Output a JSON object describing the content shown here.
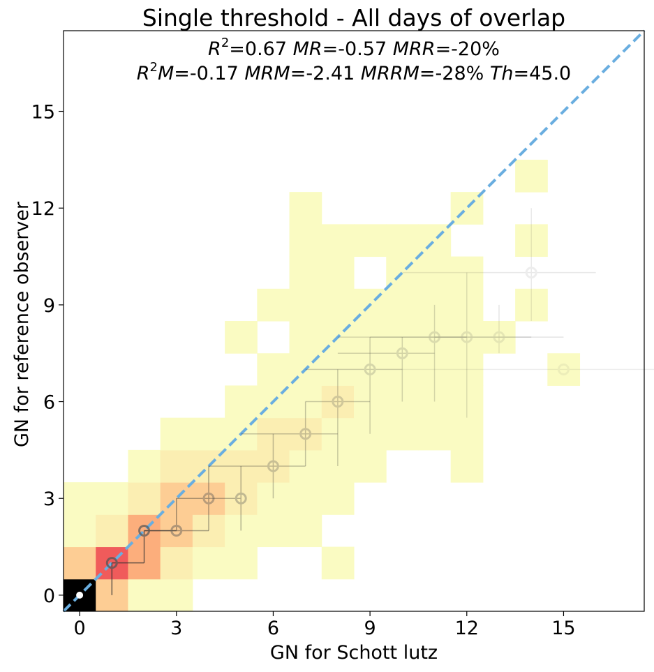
{
  "chart_data": {
    "type": "heatmap",
    "title": "Single threshold - All days of overlap",
    "stats_line1": {
      "r2_label": "R",
      "r2_sup": "2",
      "r2_value": "=0.67 ",
      "mr_label": "MR",
      "mr_value": "=-0.57 ",
      "mrr_label": "MRR",
      "mrr_value": "=-20%"
    },
    "stats_line2": {
      "r2m_label": "R",
      "r2m_sup": "2",
      "r2m_m": "M",
      "r2m_value": "=-0.17 ",
      "mrm_label": "MRM",
      "mrm_value": "=-2.41 ",
      "mrrm_label": "MRRM",
      "mrrm_value": "=-28% ",
      "th_label": "Th",
      "th_value": "=45.0"
    },
    "xlabel": "GN for Schott lutz",
    "ylabel": "GN for reference observer",
    "xlim": [
      -0.5,
      17.5
    ],
    "ylim": [
      -0.5,
      17.5
    ],
    "xticks": [
      0,
      3,
      6,
      9,
      12,
      15
    ],
    "yticks": [
      0,
      3,
      6,
      9,
      12,
      15
    ],
    "color_levels": {
      "1": "#fafbc2",
      "2": "#fbeeb2",
      "3": "#fcdca2",
      "4": "#fdcd94",
      "5": "#fcae7c",
      "6": "#f05b5b",
      "7": "#000000"
    },
    "cells": [
      {
        "x": 0,
        "y": 0,
        "v": 7
      },
      {
        "x": 1,
        "y": 0,
        "v": 4
      },
      {
        "x": 2,
        "y": 0,
        "v": 1
      },
      {
        "x": 3,
        "y": 0,
        "v": 1
      },
      {
        "x": 0,
        "y": 1,
        "v": 4
      },
      {
        "x": 1,
        "y": 1,
        "v": 6
      },
      {
        "x": 2,
        "y": 1,
        "v": 5
      },
      {
        "x": 3,
        "y": 1,
        "v": 2
      },
      {
        "x": 4,
        "y": 1,
        "v": 1
      },
      {
        "x": 5,
        "y": 1,
        "v": 1
      },
      {
        "x": 8,
        "y": 1,
        "v": 1
      },
      {
        "x": 0,
        "y": 2,
        "v": 1
      },
      {
        "x": 1,
        "y": 2,
        "v": 2
      },
      {
        "x": 2,
        "y": 2,
        "v": 5
      },
      {
        "x": 3,
        "y": 2,
        "v": 4
      },
      {
        "x": 4,
        "y": 2,
        "v": 2
      },
      {
        "x": 5,
        "y": 2,
        "v": 1
      },
      {
        "x": 6,
        "y": 2,
        "v": 1
      },
      {
        "x": 7,
        "y": 2,
        "v": 1
      },
      {
        "x": 0,
        "y": 3,
        "v": 1
      },
      {
        "x": 1,
        "y": 3,
        "v": 1
      },
      {
        "x": 2,
        "y": 3,
        "v": 2
      },
      {
        "x": 3,
        "y": 3,
        "v": 4
      },
      {
        "x": 4,
        "y": 3,
        "v": 4
      },
      {
        "x": 5,
        "y": 3,
        "v": 2
      },
      {
        "x": 6,
        "y": 3,
        "v": 1
      },
      {
        "x": 7,
        "y": 3,
        "v": 1
      },
      {
        "x": 8,
        "y": 3,
        "v": 1
      },
      {
        "x": 2,
        "y": 4,
        "v": 1
      },
      {
        "x": 3,
        "y": 4,
        "v": 2
      },
      {
        "x": 4,
        "y": 4,
        "v": 2
      },
      {
        "x": 5,
        "y": 4,
        "v": 2
      },
      {
        "x": 6,
        "y": 4,
        "v": 2
      },
      {
        "x": 7,
        "y": 4,
        "v": 1
      },
      {
        "x": 8,
        "y": 4,
        "v": 1
      },
      {
        "x": 9,
        "y": 4,
        "v": 1
      },
      {
        "x": 12,
        "y": 4,
        "v": 1
      },
      {
        "x": 3,
        "y": 5,
        "v": 1
      },
      {
        "x": 4,
        "y": 5,
        "v": 1
      },
      {
        "x": 5,
        "y": 5,
        "v": 1
      },
      {
        "x": 6,
        "y": 5,
        "v": 2
      },
      {
        "x": 7,
        "y": 5,
        "v": 2
      },
      {
        "x": 8,
        "y": 5,
        "v": 1
      },
      {
        "x": 9,
        "y": 5,
        "v": 1
      },
      {
        "x": 10,
        "y": 5,
        "v": 1
      },
      {
        "x": 11,
        "y": 5,
        "v": 1
      },
      {
        "x": 12,
        "y": 5,
        "v": 1
      },
      {
        "x": 5,
        "y": 6,
        "v": 1
      },
      {
        "x": 6,
        "y": 6,
        "v": 1
      },
      {
        "x": 7,
        "y": 6,
        "v": 1
      },
      {
        "x": 8,
        "y": 6,
        "v": 2
      },
      {
        "x": 9,
        "y": 6,
        "v": 1
      },
      {
        "x": 10,
        "y": 6,
        "v": 1
      },
      {
        "x": 11,
        "y": 6,
        "v": 1
      },
      {
        "x": 12,
        "y": 6,
        "v": 1
      },
      {
        "x": 6,
        "y": 7,
        "v": 1
      },
      {
        "x": 7,
        "y": 7,
        "v": 1
      },
      {
        "x": 8,
        "y": 7,
        "v": 1
      },
      {
        "x": 9,
        "y": 7,
        "v": 1
      },
      {
        "x": 10,
        "y": 7,
        "v": 1
      },
      {
        "x": 11,
        "y": 7,
        "v": 1
      },
      {
        "x": 12,
        "y": 7,
        "v": 1
      },
      {
        "x": 15,
        "y": 7,
        "v": 1
      },
      {
        "x": 5,
        "y": 8,
        "v": 1
      },
      {
        "x": 7,
        "y": 8,
        "v": 1
      },
      {
        "x": 8,
        "y": 8,
        "v": 1
      },
      {
        "x": 9,
        "y": 8,
        "v": 1
      },
      {
        "x": 10,
        "y": 8,
        "v": 1
      },
      {
        "x": 11,
        "y": 8,
        "v": 1
      },
      {
        "x": 12,
        "y": 8,
        "v": 1
      },
      {
        "x": 13,
        "y": 8,
        "v": 1
      },
      {
        "x": 6,
        "y": 9,
        "v": 1
      },
      {
        "x": 7,
        "y": 9,
        "v": 1
      },
      {
        "x": 8,
        "y": 9,
        "v": 1
      },
      {
        "x": 9,
        "y": 9,
        "v": 1
      },
      {
        "x": 10,
        "y": 9,
        "v": 1
      },
      {
        "x": 11,
        "y": 9,
        "v": 1
      },
      {
        "x": 12,
        "y": 9,
        "v": 1
      },
      {
        "x": 14,
        "y": 9,
        "v": 1
      },
      {
        "x": 7,
        "y": 10,
        "v": 1
      },
      {
        "x": 8,
        "y": 10,
        "v": 1
      },
      {
        "x": 10,
        "y": 10,
        "v": 1
      },
      {
        "x": 11,
        "y": 10,
        "v": 1
      },
      {
        "x": 12,
        "y": 10,
        "v": 1
      },
      {
        "x": 7,
        "y": 11,
        "v": 1
      },
      {
        "x": 8,
        "y": 11,
        "v": 1
      },
      {
        "x": 9,
        "y": 11,
        "v": 1
      },
      {
        "x": 10,
        "y": 11,
        "v": 1
      },
      {
        "x": 11,
        "y": 11,
        "v": 1
      },
      {
        "x": 14,
        "y": 11,
        "v": 1
      },
      {
        "x": 7,
        "y": 12,
        "v": 1
      },
      {
        "x": 12,
        "y": 12,
        "v": 1
      },
      {
        "x": 14,
        "y": 13,
        "v": 1
      }
    ],
    "medians": [
      {
        "x": 0,
        "y": 0,
        "y_lo": 0,
        "y_hi": 0,
        "x_lo": 0,
        "x_hi": 0,
        "alpha": 1.0
      },
      {
        "x": 1,
        "y": 1,
        "y_lo": 0,
        "y_hi": 1,
        "x_lo": 1,
        "x_hi": 2,
        "alpha": 0.75
      },
      {
        "x": 2,
        "y": 2,
        "y_lo": 1,
        "y_hi": 2,
        "x_lo": 2,
        "x_hi": 3,
        "alpha": 0.7
      },
      {
        "x": 3,
        "y": 2,
        "y_lo": 2,
        "y_hi": 3,
        "x_lo": 2,
        "x_hi": 4,
        "alpha": 0.45
      },
      {
        "x": 4,
        "y": 3,
        "y_lo": 2,
        "y_hi": 4,
        "x_lo": 3,
        "x_hi": 4,
        "alpha": 0.4
      },
      {
        "x": 5,
        "y": 3,
        "y_lo": 2,
        "y_hi": 4,
        "x_lo": 4,
        "x_hi": 5,
        "alpha": 0.35
      },
      {
        "x": 6,
        "y": 4,
        "y_lo": 3,
        "y_hi": 5,
        "x_lo": 4,
        "x_hi": 7,
        "alpha": 0.3
      },
      {
        "x": 7,
        "y": 5,
        "y_lo": 4,
        "y_hi": 6,
        "x_lo": 5,
        "x_hi": 8,
        "alpha": 0.28
      },
      {
        "x": 8,
        "y": 6,
        "y_lo": 4,
        "y_hi": 7,
        "x_lo": 7,
        "x_hi": 9,
        "alpha": 0.25
      },
      {
        "x": 9,
        "y": 7,
        "y_lo": 5,
        "y_hi": 8,
        "x_lo": 7,
        "x_hi": 10,
        "alpha": 0.22
      },
      {
        "x": 10,
        "y": 7.5,
        "y_lo": 6,
        "y_hi": 8,
        "x_lo": 8,
        "x_hi": 11,
        "alpha": 0.2
      },
      {
        "x": 11,
        "y": 8,
        "y_lo": 6,
        "y_hi": 9,
        "x_lo": 8,
        "x_hi": 12,
        "alpha": 0.18
      },
      {
        "x": 12,
        "y": 8,
        "y_lo": 5.5,
        "y_hi": 10,
        "x_lo": 9,
        "x_hi": 14,
        "alpha": 0.15
      },
      {
        "x": 13,
        "y": 8,
        "y_lo": 7.5,
        "y_hi": 9,
        "x_lo": 11,
        "x_hi": 15,
        "alpha": 0.12
      },
      {
        "x": 14,
        "y": 10,
        "y_lo": 8.5,
        "y_hi": 12,
        "x_lo": 10,
        "x_hi": 16,
        "alpha": 0.1
      },
      {
        "x": 15,
        "y": 7,
        "y_lo": 7,
        "y_hi": 7,
        "x_lo": 10,
        "x_hi": 18,
        "alpha": 0.08
      }
    ],
    "identity_line": {
      "color": "#6aaee0",
      "style": "dashed"
    },
    "grid": false
  }
}
